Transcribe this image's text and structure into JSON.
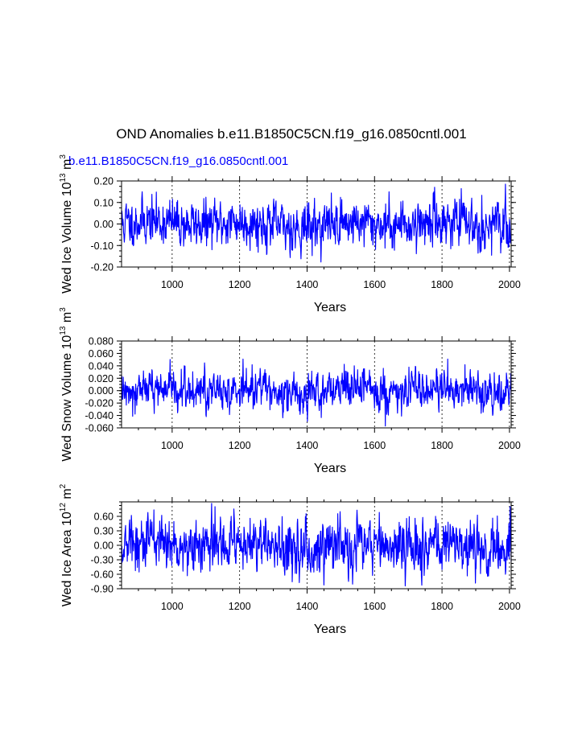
{
  "title": "OND Anomalies b.e11.B1850C5CN.f19_g16.0850cntl.001",
  "colors": {
    "series": "#0000ff",
    "axis": "#000000",
    "grid": "#000000"
  },
  "chart_data": [
    {
      "type": "line",
      "subtitle": "b.e11.B1850C5CN.f19_g16.0850cntl.001",
      "xlabel": "Years",
      "ylabel": {
        "main": "Wed Ice Volume 10",
        "exp": "13",
        "unit": "m",
        "unit_exp": "3"
      },
      "xlim": [
        850,
        2005
      ],
      "ylim": [
        -0.2,
        0.2
      ],
      "x_ticks": [
        "1000",
        "1200",
        "1400",
        "1600",
        "1800",
        "2000"
      ],
      "y_ticks": [
        "-0.20",
        "-0.10",
        "0.00",
        "0.10",
        "0.20"
      ],
      "series": [
        {
          "name": "Wed Ice Volume",
          "std": 0.055,
          "seed": 11
        }
      ]
    },
    {
      "type": "line",
      "subtitle": "",
      "xlabel": "Years",
      "ylabel": {
        "main": "Wed Snow Volume 10",
        "exp": "13",
        "unit": "m",
        "unit_exp": "3"
      },
      "xlim": [
        850,
        2005
      ],
      "ylim": [
        -0.06,
        0.08
      ],
      "x_ticks": [
        "1000",
        "1200",
        "1400",
        "1600",
        "1800",
        "2000"
      ],
      "y_ticks": [
        "-0.060",
        "-0.040",
        "-0.020",
        "0.000",
        "0.020",
        "0.040",
        "0.060",
        "0.080"
      ],
      "series": [
        {
          "name": "Wed Snow Volume",
          "std": 0.016,
          "seed": 12
        }
      ]
    },
    {
      "type": "line",
      "subtitle": "",
      "xlabel": "Years",
      "ylabel": {
        "main": "Wed Ice Area 10",
        "exp": "12",
        "unit": "m",
        "unit_exp": "2"
      },
      "xlim": [
        850,
        2005
      ],
      "ylim": [
        -0.9,
        0.9
      ],
      "x_ticks": [
        "1000",
        "1200",
        "1400",
        "1600",
        "1800",
        "2000"
      ],
      "y_ticks": [
        "-0.90",
        "-0.60",
        "-0.30",
        "0.00",
        "0.30",
        "0.60"
      ],
      "series": [
        {
          "name": "Wed Ice Area",
          "std": 0.28,
          "seed": 13
        }
      ]
    }
  ]
}
